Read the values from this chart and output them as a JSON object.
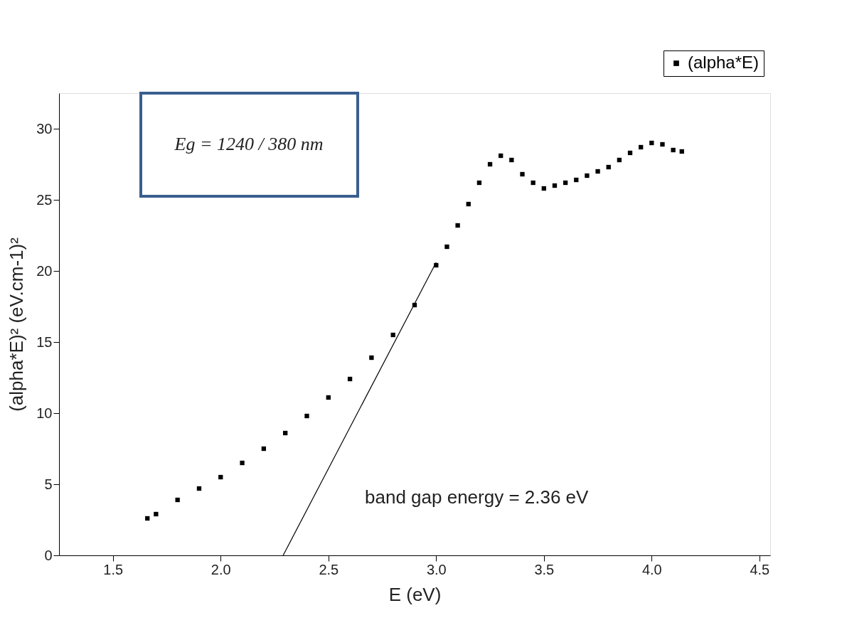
{
  "chart_data": {
    "type": "scatter",
    "xlabel": "E (eV)",
    "ylabel": "(alpha*E)² (eV.cm-1)²",
    "xlim": [
      1.25,
      4.55
    ],
    "xticks": [
      {
        "value": 1.5,
        "label": "1.5"
      },
      {
        "value": 2,
        "label": "2.0"
      },
      {
        "value": 2.5,
        "label": "2.5"
      },
      {
        "value": 3,
        "label": "3.0"
      },
      {
        "value": 3.5,
        "label": "3.5"
      },
      {
        "value": 4,
        "label": "4.0"
      },
      {
        "value": 4.5,
        "label": "4.5"
      }
    ],
    "ylim": [
      0,
      32.5
    ],
    "yticks": [
      0,
      5,
      10,
      15,
      20,
      25,
      30
    ],
    "grid": false,
    "marker": "square",
    "legend": "top right",
    "series": [
      {
        "name": "(alpha*E)",
        "color": "#000000",
        "x": [
          1.66,
          1.7,
          1.8,
          1.9,
          2.0,
          2.1,
          2.2,
          2.3,
          2.4,
          2.5,
          2.6,
          2.7,
          2.8,
          2.9,
          3.0,
          3.05,
          3.1,
          3.15,
          3.2,
          3.25,
          3.3,
          3.35,
          3.4,
          3.45,
          3.5,
          3.55,
          3.6,
          3.65,
          3.7,
          3.75,
          3.8,
          3.85,
          3.9,
          3.95,
          4.0,
          4.05,
          4.1,
          4.14
        ],
        "values": [
          2.6,
          2.9,
          3.9,
          4.7,
          5.5,
          6.5,
          7.5,
          8.6,
          9.8,
          11.1,
          12.4,
          13.9,
          15.5,
          17.6,
          20.4,
          21.7,
          23.2,
          24.7,
          26.2,
          27.5,
          28.1,
          27.8,
          26.8,
          26.2,
          25.8,
          26.0,
          26.2,
          26.4,
          26.7,
          27.0,
          27.3,
          27.8,
          28.3,
          28.7,
          29.0,
          28.9,
          28.5,
          28.4
        ]
      },
      {
        "type": "line",
        "marker": "none",
        "line_style": "solid",
        "color": "#000000",
        "x": [
          2.29,
          3.0
        ],
        "values": [
          0,
          20.6
        ]
      }
    ],
    "annotations": [
      "Eg = 1240 / 380 nm",
      "band gap energy = 2.36 eV"
    ]
  }
}
